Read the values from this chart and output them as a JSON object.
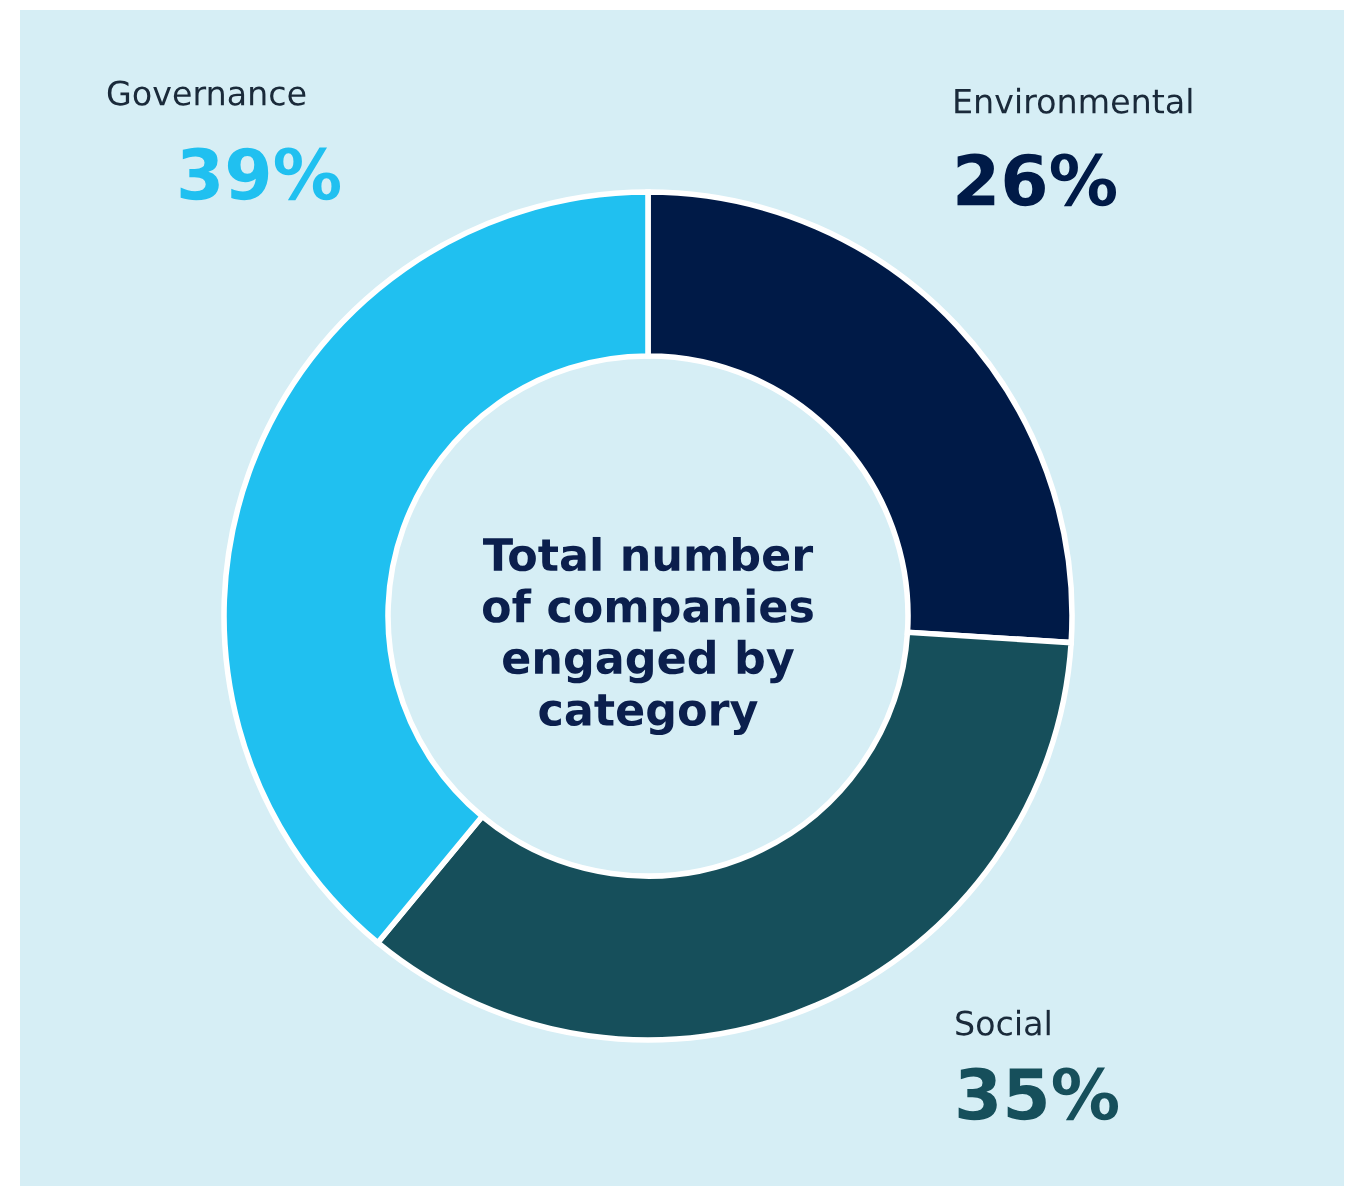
{
  "chart_data": {
    "type": "donut",
    "title": "Total number of companies engaged by category",
    "categories": [
      "Environmental",
      "Social",
      "Governance"
    ],
    "values": [
      26,
      35,
      39
    ],
    "value_labels": [
      "26%",
      "35%",
      "39%"
    ],
    "colors": [
      "#001a47",
      "#164f5b",
      "#20c0f0"
    ],
    "legend": false
  }
}
